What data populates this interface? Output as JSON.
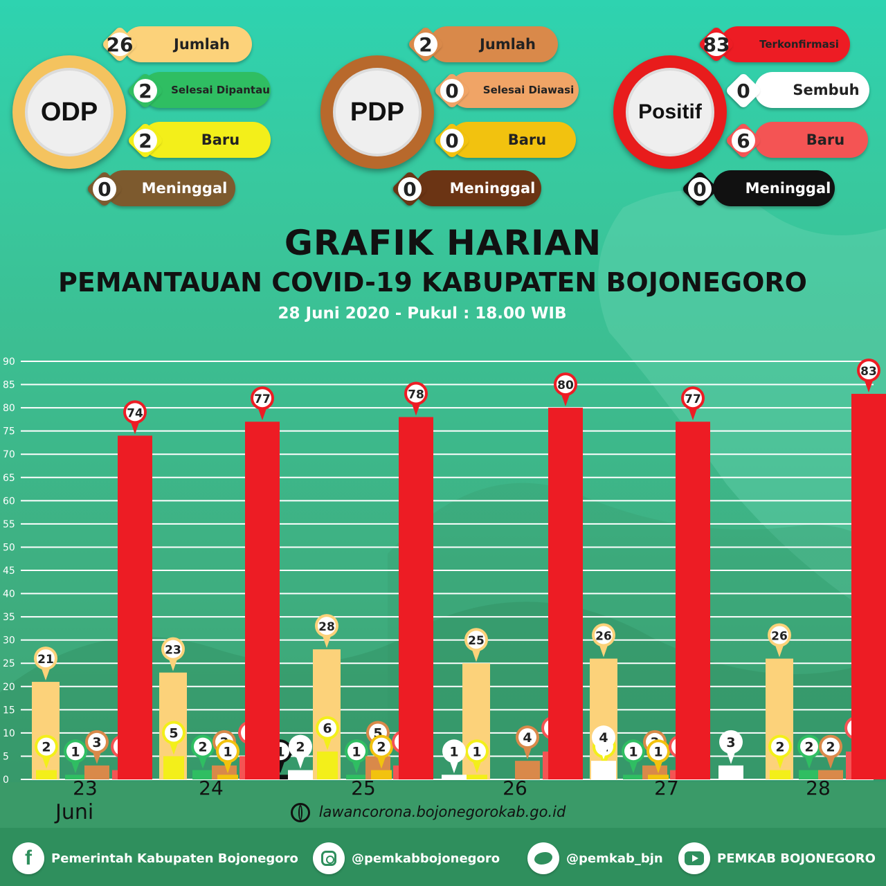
{
  "header": {
    "title": "GRAFIK HARIAN",
    "subtitle": "PEMANTAUAN COVID-19 KABUPATEN BOJONEGORO",
    "timestamp": "28 Juni 2020 - Pukul : 18.00 WIB"
  },
  "clusters": [
    {
      "name": "ODP",
      "ring_color": "#f4c35f",
      "items": [
        {
          "value": "26",
          "label": "Jumlah",
          "pill_color": "#fcd27a",
          "badge_color": "#fcd27a"
        },
        {
          "value": "2",
          "label": "Selesai Dipantau",
          "pill_color": "#2fbe62",
          "badge_color": "#2fbe62"
        },
        {
          "value": "2",
          "label": "Baru",
          "pill_color": "#f3ef1a",
          "badge_color": "#f3ef1a"
        },
        {
          "value": "0",
          "label": "Meninggal",
          "pill_color": "#7d5a2e",
          "badge_color": "#7d5a2e"
        }
      ]
    },
    {
      "name": "PDP",
      "ring_color": "#b8692c",
      "items": [
        {
          "value": "2",
          "label": "Jumlah",
          "pill_color": "#d9894a",
          "badge_color": "#d9894a"
        },
        {
          "value": "0",
          "label": "Selesai Diawasi",
          "pill_color": "#f0a466",
          "badge_color": "#f0a466"
        },
        {
          "value": "0",
          "label": "Baru",
          "pill_color": "#f2c20f",
          "badge_color": "#f2c20f"
        },
        {
          "value": "0",
          "label": "Meninggal",
          "pill_color": "#6b3414",
          "badge_color": "#6b3414"
        }
      ]
    },
    {
      "name": "Positif",
      "ring_color": "#e81c1c",
      "items": [
        {
          "value": "83",
          "label": "Terkonfirmasi",
          "pill_color": "#ed1c24",
          "badge_color": "#ed1c24"
        },
        {
          "value": "0",
          "label": "Sembuh",
          "pill_color": "#ffffff",
          "badge_color": "#ffffff"
        },
        {
          "value": "6",
          "label": "Baru",
          "pill_color": "#f45454",
          "badge_color": "#f45454"
        },
        {
          "value": "0",
          "label": "Meninggal",
          "pill_color": "#111111",
          "badge_color": "#111111"
        }
      ]
    }
  ],
  "chart_data": {
    "type": "bar",
    "categories": [
      "23",
      "24",
      "25",
      "26",
      "27",
      "28"
    ],
    "month_label": "Juni",
    "ylim": [
      0,
      90
    ],
    "yticks": [
      "0",
      "5",
      "10",
      "15",
      "20",
      "25",
      "30",
      "35",
      "40",
      "45",
      "50",
      "55",
      "60",
      "65",
      "70",
      "75",
      "80",
      "85",
      "90"
    ],
    "grid": true,
    "series": [
      {
        "color": "#fcd27a",
        "values": [
          21,
          23,
          28,
          25,
          26,
          26
        ]
      },
      {
        "color": "#f3ef1a",
        "values": [
          2,
          5,
          6,
          1,
          2,
          2
        ]
      },
      {
        "color": "#2fbe62",
        "values": [
          1,
          2,
          1,
          0,
          1,
          2
        ]
      },
      {
        "color": "#d9894a",
        "values": [
          3,
          3,
          5,
          4,
          3,
          2
        ]
      },
      {
        "color": "#f2c20f",
        "values": [
          0,
          1,
          2,
          0,
          1,
          0
        ]
      },
      {
        "color": "#f45454",
        "values": [
          2,
          5,
          3,
          6,
          2,
          6
        ]
      },
      {
        "color": "#111111",
        "values": [
          0,
          1,
          0,
          0,
          0,
          0
        ]
      },
      {
        "color": "#ffffff",
        "values": [
          0,
          2,
          1,
          4,
          3,
          0
        ]
      },
      {
        "color": "#ed1c24",
        "values": [
          74,
          77,
          78,
          80,
          77,
          83
        ]
      }
    ]
  },
  "website": "lawancorona.bojonegorokab.go.id",
  "footer": [
    {
      "icon": "facebook-icon",
      "text": "Pemerintah Kabupaten Bojonegoro"
    },
    {
      "icon": "instagram-icon",
      "text": "@pemkabbojonegoro"
    },
    {
      "icon": "twitter-icon",
      "text": "@pemkab_bjn"
    },
    {
      "icon": "youtube-icon",
      "text": "PEMKAB BOJONEGORO"
    }
  ]
}
